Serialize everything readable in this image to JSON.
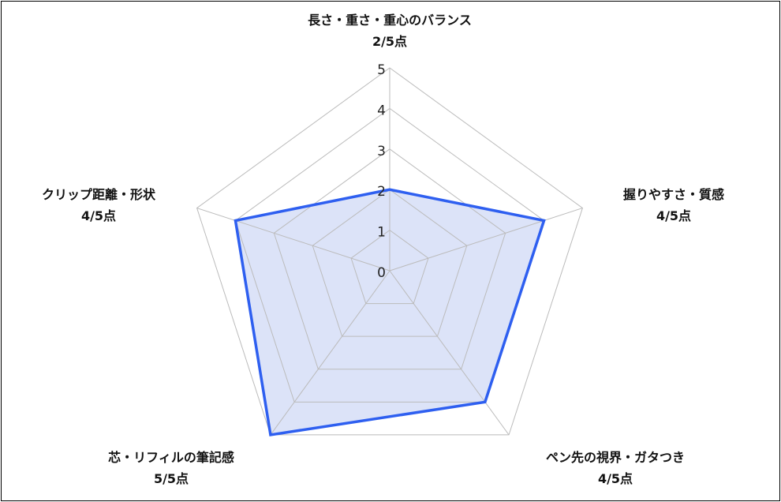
{
  "chart_data": {
    "type": "radar",
    "axes": [
      {
        "name": "長さ・重さ・重心のバランス",
        "score_label": "2/5点",
        "value": 2
      },
      {
        "name": "握りやすさ・質感",
        "score_label": "4/5点",
        "value": 4
      },
      {
        "name": "ペン先の視界・ガタつき",
        "score_label": "4/5点",
        "value": 4
      },
      {
        "name": "芯・リフィルの筆記感",
        "score_label": "5/5点",
        "value": 5
      },
      {
        "name": "クリップ距離・形状",
        "score_label": "4/5点",
        "value": 4
      }
    ],
    "rlim": [
      0,
      5
    ],
    "ticks": [
      "0",
      "1",
      "2",
      "3",
      "4",
      "5"
    ],
    "grid": true,
    "colors": {
      "line": "#2e5ff0",
      "fill": "#dce3f8",
      "grid": "#bbbbbb"
    }
  }
}
